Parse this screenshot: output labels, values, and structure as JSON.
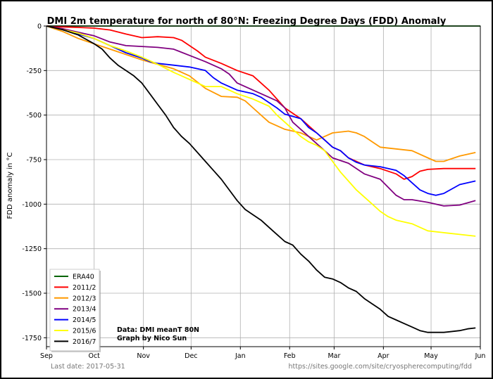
{
  "chart_data": {
    "type": "line",
    "title": "DMI 2m temperature for north of 80°N: Freezing Degree Days (FDD) Anomaly",
    "ylabel": "FDD anomaly in °C",
    "xlabel": "",
    "ylim": [
      -1800,
      0
    ],
    "yticks": [
      0,
      -250,
      -500,
      -750,
      -1000,
      -1250,
      -1500,
      -1750
    ],
    "x_unit": "day_of_season",
    "x_ticks": [
      {
        "label": "Sep",
        "day": 0
      },
      {
        "label": "Oct",
        "day": 30
      },
      {
        "label": "Nov",
        "day": 61
      },
      {
        "label": "Dec",
        "day": 91
      },
      {
        "label": "Jan",
        "day": 122
      },
      {
        "label": "Feb",
        "day": 153
      },
      {
        "label": "Mar",
        "day": 181
      },
      {
        "label": "Apr",
        "day": 212
      },
      {
        "label": "May",
        "day": 242
      },
      {
        "label": "Jun",
        "day": 273
      }
    ],
    "grid": true,
    "legend_position": "bottom-left",
    "series": [
      {
        "name": "ERA40",
        "color": "#006400",
        "points": [
          [
            0,
            0
          ],
          [
            273,
            0
          ]
        ]
      },
      {
        "name": "2011/2",
        "color": "#ff0000",
        "points": [
          [
            0,
            0
          ],
          [
            10,
            -5
          ],
          [
            20,
            -8
          ],
          [
            30,
            -12
          ],
          [
            40,
            -22
          ],
          [
            50,
            -45
          ],
          [
            60,
            -65
          ],
          [
            70,
            -60
          ],
          [
            80,
            -65
          ],
          [
            85,
            -80
          ],
          [
            90,
            -110
          ],
          [
            95,
            -140
          ],
          [
            100,
            -175
          ],
          [
            110,
            -210
          ],
          [
            120,
            -250
          ],
          [
            130,
            -280
          ],
          [
            135,
            -320
          ],
          [
            140,
            -360
          ],
          [
            145,
            -410
          ],
          [
            150,
            -460
          ],
          [
            155,
            -490
          ],
          [
            160,
            -520
          ],
          [
            165,
            -560
          ],
          [
            170,
            -600
          ],
          [
            175,
            -640
          ],
          [
            180,
            -680
          ],
          [
            185,
            -700
          ],
          [
            190,
            -740
          ],
          [
            200,
            -780
          ],
          [
            210,
            -800
          ],
          [
            220,
            -830
          ],
          [
            225,
            -860
          ],
          [
            230,
            -845
          ],
          [
            235,
            -815
          ],
          [
            240,
            -805
          ],
          [
            250,
            -800
          ],
          [
            260,
            -800
          ],
          [
            270,
            -800
          ]
        ]
      },
      {
        "name": "2012/3",
        "color": "#ff9900",
        "points": [
          [
            0,
            0
          ],
          [
            10,
            -30
          ],
          [
            20,
            -70
          ],
          [
            30,
            -100
          ],
          [
            40,
            -130
          ],
          [
            50,
            -160
          ],
          [
            60,
            -190
          ],
          [
            70,
            -215
          ],
          [
            80,
            -240
          ],
          [
            90,
            -280
          ],
          [
            100,
            -350
          ],
          [
            110,
            -395
          ],
          [
            120,
            -400
          ],
          [
            125,
            -420
          ],
          [
            130,
            -460
          ],
          [
            135,
            -500
          ],
          [
            140,
            -540
          ],
          [
            150,
            -580
          ],
          [
            160,
            -600
          ],
          [
            165,
            -620
          ],
          [
            170,
            -640
          ],
          [
            175,
            -620
          ],
          [
            180,
            -600
          ],
          [
            190,
            -590
          ],
          [
            195,
            -600
          ],
          [
            200,
            -620
          ],
          [
            205,
            -650
          ],
          [
            210,
            -680
          ],
          [
            220,
            -690
          ],
          [
            230,
            -700
          ],
          [
            240,
            -740
          ],
          [
            245,
            -760
          ],
          [
            250,
            -760
          ],
          [
            260,
            -730
          ],
          [
            270,
            -710
          ]
        ]
      },
      {
        "name": "2013/4",
        "color": "#800080",
        "points": [
          [
            0,
            0
          ],
          [
            10,
            -15
          ],
          [
            20,
            -35
          ],
          [
            30,
            -55
          ],
          [
            40,
            -90
          ],
          [
            50,
            -110
          ],
          [
            60,
            -115
          ],
          [
            70,
            -120
          ],
          [
            80,
            -130
          ],
          [
            90,
            -165
          ],
          [
            100,
            -200
          ],
          [
            110,
            -240
          ],
          [
            115,
            -270
          ],
          [
            120,
            -320
          ],
          [
            130,
            -360
          ],
          [
            140,
            -400
          ],
          [
            145,
            -420
          ],
          [
            150,
            -460
          ],
          [
            155,
            -540
          ],
          [
            160,
            -580
          ],
          [
            165,
            -620
          ],
          [
            170,
            -660
          ],
          [
            175,
            -700
          ],
          [
            180,
            -740
          ],
          [
            190,
            -770
          ],
          [
            200,
            -830
          ],
          [
            210,
            -860
          ],
          [
            220,
            -950
          ],
          [
            225,
            -975
          ],
          [
            230,
            -975
          ],
          [
            240,
            -990
          ],
          [
            250,
            -1010
          ],
          [
            260,
            -1005
          ],
          [
            270,
            -980
          ]
        ]
      },
      {
        "name": "2014/5",
        "color": "#0000ff",
        "points": [
          [
            0,
            0
          ],
          [
            10,
            -20
          ],
          [
            20,
            -45
          ],
          [
            30,
            -70
          ],
          [
            40,
            -110
          ],
          [
            50,
            -150
          ],
          [
            60,
            -180
          ],
          [
            65,
            -200
          ],
          [
            70,
            -210
          ],
          [
            80,
            -220
          ],
          [
            90,
            -230
          ],
          [
            100,
            -250
          ],
          [
            105,
            -290
          ],
          [
            110,
            -320
          ],
          [
            120,
            -360
          ],
          [
            130,
            -380
          ],
          [
            135,
            -400
          ],
          [
            140,
            -430
          ],
          [
            145,
            -460
          ],
          [
            150,
            -495
          ],
          [
            160,
            -520
          ],
          [
            165,
            -570
          ],
          [
            170,
            -600
          ],
          [
            175,
            -640
          ],
          [
            180,
            -680
          ],
          [
            185,
            -700
          ],
          [
            190,
            -740
          ],
          [
            195,
            -765
          ],
          [
            200,
            -780
          ],
          [
            210,
            -790
          ],
          [
            220,
            -810
          ],
          [
            225,
            -840
          ],
          [
            230,
            -880
          ],
          [
            235,
            -920
          ],
          [
            240,
            -940
          ],
          [
            245,
            -950
          ],
          [
            250,
            -940
          ],
          [
            260,
            -890
          ],
          [
            270,
            -870
          ]
        ]
      },
      {
        "name": "2015/6",
        "color": "#ffff00",
        "points": [
          [
            0,
            0
          ],
          [
            10,
            -20
          ],
          [
            20,
            -40
          ],
          [
            30,
            -70
          ],
          [
            40,
            -110
          ],
          [
            50,
            -140
          ],
          [
            60,
            -175
          ],
          [
            70,
            -215
          ],
          [
            80,
            -260
          ],
          [
            90,
            -300
          ],
          [
            100,
            -340
          ],
          [
            110,
            -340
          ],
          [
            115,
            -360
          ],
          [
            120,
            -380
          ],
          [
            130,
            -410
          ],
          [
            140,
            -450
          ],
          [
            145,
            -500
          ],
          [
            150,
            -540
          ],
          [
            155,
            -580
          ],
          [
            160,
            -620
          ],
          [
            165,
            -650
          ],
          [
            170,
            -670
          ],
          [
            175,
            -700
          ],
          [
            180,
            -760
          ],
          [
            185,
            -820
          ],
          [
            190,
            -870
          ],
          [
            195,
            -920
          ],
          [
            200,
            -960
          ],
          [
            205,
            -1000
          ],
          [
            210,
            -1040
          ],
          [
            215,
            -1070
          ],
          [
            220,
            -1090
          ],
          [
            230,
            -1110
          ],
          [
            235,
            -1130
          ],
          [
            240,
            -1150
          ],
          [
            250,
            -1160
          ],
          [
            260,
            -1170
          ],
          [
            270,
            -1180
          ]
        ]
      },
      {
        "name": "2016/7",
        "color": "#000000",
        "points": [
          [
            0,
            0
          ],
          [
            10,
            -20
          ],
          [
            20,
            -50
          ],
          [
            30,
            -100
          ],
          [
            35,
            -130
          ],
          [
            40,
            -180
          ],
          [
            45,
            -220
          ],
          [
            50,
            -250
          ],
          [
            55,
            -280
          ],
          [
            60,
            -320
          ],
          [
            65,
            -380
          ],
          [
            70,
            -440
          ],
          [
            75,
            -500
          ],
          [
            80,
            -570
          ],
          [
            85,
            -620
          ],
          [
            90,
            -660
          ],
          [
            95,
            -710
          ],
          [
            100,
            -760
          ],
          [
            105,
            -810
          ],
          [
            110,
            -860
          ],
          [
            115,
            -920
          ],
          [
            120,
            -980
          ],
          [
            125,
            -1030
          ],
          [
            130,
            -1060
          ],
          [
            135,
            -1090
          ],
          [
            140,
            -1130
          ],
          [
            145,
            -1170
          ],
          [
            150,
            -1210
          ],
          [
            155,
            -1230
          ],
          [
            160,
            -1280
          ],
          [
            165,
            -1320
          ],
          [
            170,
            -1370
          ],
          [
            175,
            -1410
          ],
          [
            180,
            -1420
          ],
          [
            185,
            -1440
          ],
          [
            190,
            -1470
          ],
          [
            195,
            -1490
          ],
          [
            200,
            -1530
          ],
          [
            205,
            -1560
          ],
          [
            210,
            -1590
          ],
          [
            215,
            -1630
          ],
          [
            220,
            -1650
          ],
          [
            225,
            -1670
          ],
          [
            230,
            -1690
          ],
          [
            235,
            -1710
          ],
          [
            240,
            -1720
          ],
          [
            250,
            -1720
          ],
          [
            260,
            -1710
          ],
          [
            265,
            -1700
          ],
          [
            270,
            -1695
          ]
        ]
      }
    ],
    "annotations": [
      "Data: DMI meanT 80N",
      "Graph by Nico Sun"
    ]
  },
  "footer": {
    "last_date": "Last date: 2017-05-31",
    "url": "https://sites.google.com/site/cryospherecomputing/fdd"
  }
}
